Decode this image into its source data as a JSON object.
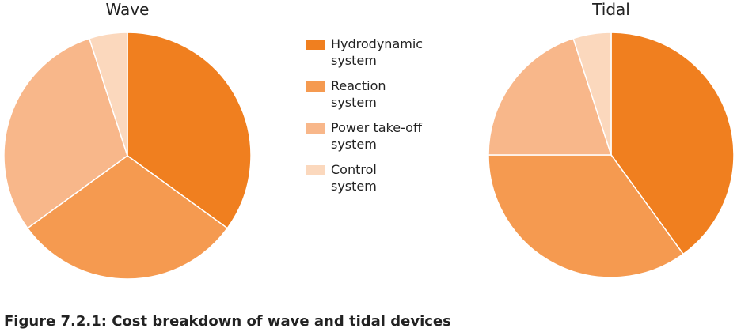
{
  "chart_data": [
    {
      "type": "pie",
      "title": "Wave",
      "values": [
        35,
        30,
        30,
        5
      ]
    },
    {
      "type": "pie",
      "title": "Tidal",
      "values": [
        40,
        35,
        20,
        5
      ]
    }
  ],
  "legend": {
    "labels": [
      "Hydrodynamic system",
      "Reaction system",
      "Power take-off system",
      "Control system"
    ],
    "colors": [
      "#f07f1f",
      "#f59a50",
      "#f8b78a",
      "#fbd8bd"
    ]
  },
  "caption": "Figure 7.2.1: Cost breakdown of wave and tidal devices"
}
